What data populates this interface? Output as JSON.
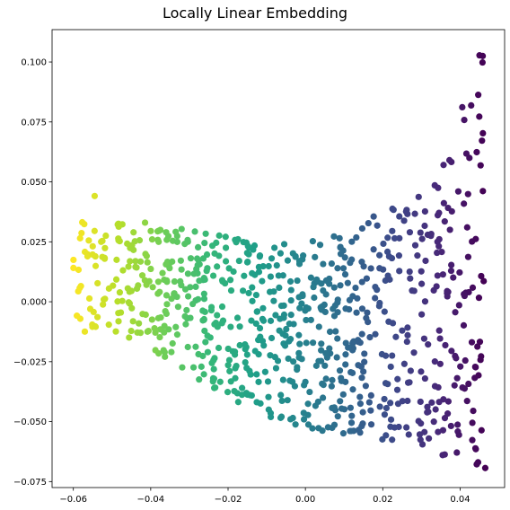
{
  "chart_data": {
    "type": "scatter",
    "title": "Locally Linear Embedding",
    "xlabel": "",
    "ylabel": "",
    "xlim": [
      -0.0655,
      0.0515
    ],
    "ylim": [
      -0.0775,
      0.1135
    ],
    "xticks": [
      -0.06,
      -0.04,
      -0.02,
      0.0,
      0.02,
      0.04
    ],
    "xtick_labels": [
      "−0.06",
      "−0.04",
      "−0.02",
      "0.00",
      "0.02",
      "0.04"
    ],
    "yticks": [
      -0.075,
      -0.05,
      -0.025,
      0.0,
      0.025,
      0.05,
      0.075,
      0.1
    ],
    "ytick_labels": [
      "−0.075",
      "−0.050",
      "−0.025",
      "0.000",
      "0.025",
      "0.050",
      "0.075",
      "0.100"
    ],
    "grid": false,
    "colormap": "viridis",
    "colormap_stops": [
      "#440154",
      "#482878",
      "#3e4989",
      "#31688e",
      "#26828e",
      "#1f9e89",
      "#35b779",
      "#6ece58",
      "#b5de2b",
      "#fde725"
    ],
    "color_encoding": "x position (yellow at left, purple at right)",
    "point_count": 800
  }
}
